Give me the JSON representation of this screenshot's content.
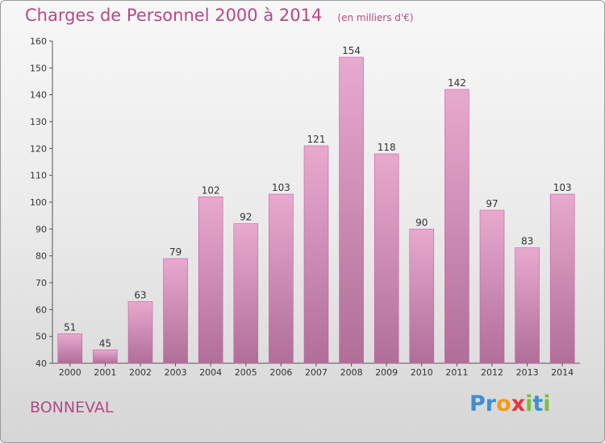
{
  "header": {
    "title": "Charges de Personnel 2000 à 2014",
    "subtitle": "(en milliers d'€)"
  },
  "footer": {
    "town": "BONNEVAL",
    "logo_letters": [
      {
        "char": "P",
        "color": "#3f8fd0"
      },
      {
        "char": "r",
        "color": "#3f8fd0"
      },
      {
        "char": "o",
        "color": "#f39a1e"
      },
      {
        "char": "x",
        "color": "#e8343f"
      },
      {
        "char": "i",
        "color": "#7cbf3d"
      },
      {
        "char": "t",
        "color": "#3f8fd0"
      },
      {
        "char": "i",
        "color": "#7cbf3d"
      }
    ]
  },
  "colors": {
    "accent": "#b34a86",
    "bar_top": "#e8a9cf",
    "bar_bottom": "#b06e98"
  },
  "chart_data": {
    "type": "bar",
    "title": "Charges de Personnel 2000 à 2014",
    "subtitle": "(en milliers d'€)",
    "categories": [
      "2000",
      "2001",
      "2002",
      "2003",
      "2004",
      "2005",
      "2006",
      "2007",
      "2008",
      "2009",
      "2010",
      "2011",
      "2012",
      "2013",
      "2014"
    ],
    "values": [
      51,
      45,
      63,
      79,
      102,
      92,
      103,
      121,
      154,
      118,
      90,
      142,
      97,
      83,
      103
    ],
    "ylim": [
      40,
      160
    ],
    "yticks": [
      40,
      50,
      60,
      70,
      80,
      90,
      100,
      110,
      120,
      130,
      140,
      150,
      160
    ],
    "grid": false,
    "legend": "none"
  }
}
